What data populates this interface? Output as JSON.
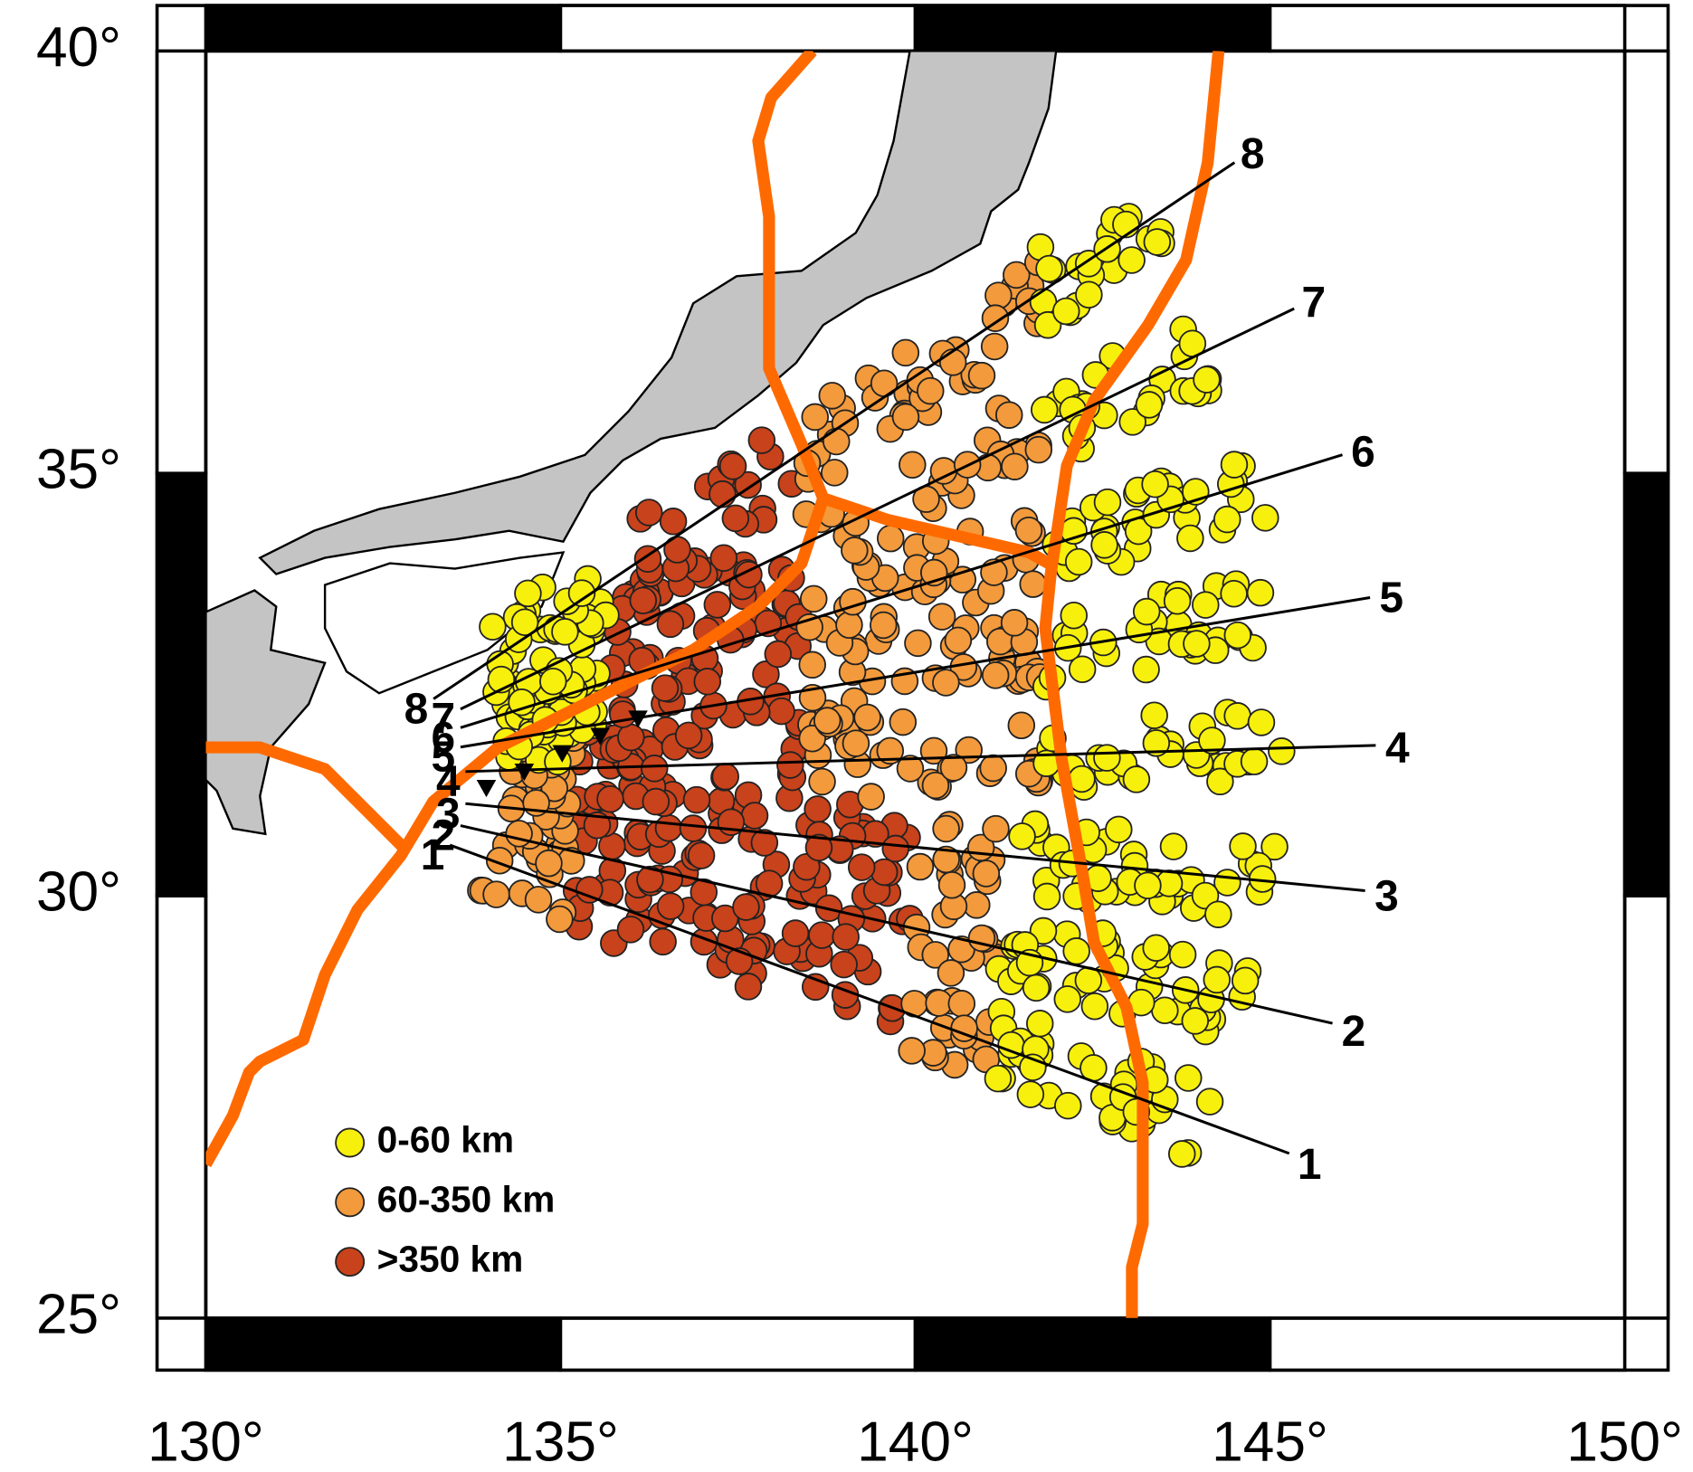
{
  "map": {
    "xlim": [
      130,
      150
    ],
    "ylim": [
      25,
      40
    ],
    "xticks": [
      {
        "value": 130,
        "label": "130°"
      },
      {
        "value": 135,
        "label": "135°"
      },
      {
        "value": 140,
        "label": "140°"
      },
      {
        "value": 145,
        "label": "145°"
      },
      {
        "value": 150,
        "label": "150°"
      }
    ],
    "yticks": [
      {
        "value": 25,
        "label": "25°"
      },
      {
        "value": 30,
        "label": "30°"
      },
      {
        "value": 35,
        "label": "35°"
      },
      {
        "value": 40,
        "label": "40°"
      }
    ],
    "profiles": [
      {
        "label": "1",
        "start": [
          133.44,
          30.6
        ],
        "end": [
          145.27,
          26.95
        ]
      },
      {
        "label": "2",
        "start": [
          133.59,
          30.83
        ],
        "end": [
          145.88,
          28.49
        ]
      },
      {
        "label": "3",
        "start": [
          133.66,
          31.09
        ],
        "end": [
          146.34,
          30.06
        ]
      },
      {
        "label": "4",
        "start": [
          133.66,
          31.47
        ],
        "end": [
          146.49,
          31.78
        ]
      },
      {
        "label": "5",
        "start": [
          133.59,
          31.76
        ],
        "end": [
          146.41,
          33.53
        ]
      },
      {
        "label": "6",
        "start": [
          133.59,
          31.99
        ],
        "end": [
          146.02,
          35.22
        ]
      },
      {
        "label": "7",
        "start": [
          133.59,
          32.21
        ],
        "end": [
          145.34,
          36.95
        ]
      },
      {
        "label": "8",
        "start": [
          133.21,
          32.33
        ],
        "end": [
          144.5,
          38.68
        ]
      }
    ],
    "legend": [
      {
        "label": "0-60 km",
        "color": "#f7f00c"
      },
      {
        "label": "60-350 km",
        "color": "#f39a3c"
      },
      {
        "label": ">350 km",
        "color": "#c8421b"
      }
    ]
  }
}
